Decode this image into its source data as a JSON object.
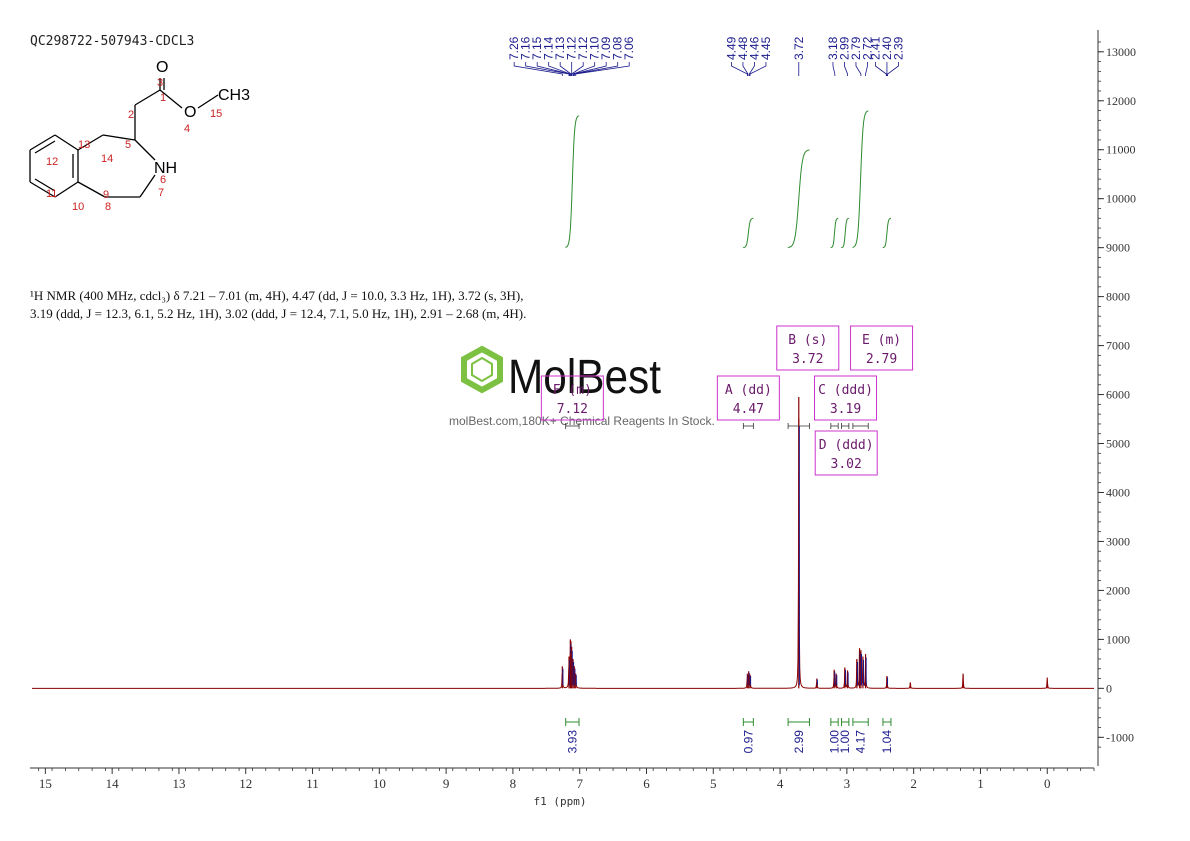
{
  "sample_id": "QC298722-507943-CDCL3",
  "nmr_text": {
    "line1": "¹H NMR (400 MHz, cdcl₃) δ 7.21 – 7.01 (m, 4H), 4.47 (dd, J = 10.0, 3.3 Hz, 1H), 3.72 (s, 3H),",
    "line2": "3.19 (ddd, J = 12.3, 6.1, 5.2 Hz, 1H), 3.02 (ddd, J = 12.4, 7.1, 5.0 Hz, 1H), 2.91 – 2.68 (m, 4H)."
  },
  "watermark": {
    "brand": "MolBest",
    "tagline": "molBest.com,180K+ Chemical Reagents In Stock."
  },
  "structure": {
    "atoms": [
      "O",
      "O",
      "CH3",
      "NH"
    ],
    "numbers": [
      "1",
      "2",
      "3",
      "4",
      "5",
      "6",
      "7",
      "8",
      "9",
      "10",
      "11",
      "12",
      "13",
      "14",
      "15"
    ]
  },
  "colors": {
    "spectrum": "#8b0000",
    "peak_labels": "#1a1a8c",
    "integral": "#2e8b2e",
    "multiplet_box": "#cc33cc",
    "axis": "#333333"
  },
  "chart_data": {
    "type": "line",
    "xlabel": "f1 (ppm)",
    "xlim": [
      15.2,
      -0.7
    ],
    "x_ticks": [
      "15",
      "14",
      "13",
      "12",
      "11",
      "10",
      "9",
      "8",
      "7",
      "6",
      "5",
      "4",
      "3",
      "2",
      "1",
      "0"
    ],
    "x_tick_values": [
      15,
      14,
      13,
      12,
      11,
      10,
      9,
      8,
      7,
      6,
      5,
      4,
      3,
      2,
      1,
      0
    ],
    "ylim": [
      -1300,
      13200
    ],
    "y_ticks": [
      "13000",
      "12000",
      "11000",
      "10000",
      "9000",
      "8000",
      "7000",
      "6000",
      "5000",
      "4000",
      "3000",
      "2000",
      "1000",
      "0",
      "-1000"
    ],
    "y_tick_values": [
      13000,
      12000,
      11000,
      10000,
      9000,
      8000,
      7000,
      6000,
      5000,
      4000,
      3000,
      2000,
      1000,
      0,
      -1000
    ],
    "peak_labels": [
      {
        "group": [
          7.26,
          7.16,
          7.15,
          7.14,
          7.13,
          7.12,
          7.12,
          7.1,
          7.09,
          7.08,
          7.06
        ],
        "labels": [
          "7.26",
          "7.16",
          "7.15",
          "7.14",
          "7.13",
          "7.12",
          "7.12",
          "7.10",
          "7.09",
          "7.08",
          "7.06"
        ],
        "target": 7.12
      },
      {
        "group": [
          4.49,
          4.48,
          4.46,
          4.45
        ],
        "labels": [
          "4.49",
          "4.48",
          "4.46",
          "4.45"
        ],
        "target": 4.47
      },
      {
        "group": [
          3.72
        ],
        "labels": [
          "3.72"
        ],
        "target": 3.72
      },
      {
        "group": [
          3.18,
          2.99,
          2.79,
          2.72
        ],
        "labels": [
          "3.18",
          "2.99",
          "2.79",
          "2.72"
        ],
        "target": 2.95
      },
      {
        "group": [
          2.41,
          2.4,
          2.39
        ],
        "labels": [
          "2.41",
          "2.40",
          "2.39"
        ],
        "target": 2.4
      }
    ],
    "peaks": [
      {
        "ppm": 7.26,
        "height": 450
      },
      {
        "ppm": 7.16,
        "height": 650
      },
      {
        "ppm": 7.14,
        "height": 1000
      },
      {
        "ppm": 7.13,
        "height": 700
      },
      {
        "ppm": 7.12,
        "height": 850
      },
      {
        "ppm": 7.1,
        "height": 600
      },
      {
        "ppm": 7.08,
        "height": 450
      },
      {
        "ppm": 7.06,
        "height": 300
      },
      {
        "ppm": 4.49,
        "height": 300
      },
      {
        "ppm": 4.47,
        "height": 350
      },
      {
        "ppm": 4.45,
        "height": 280
      },
      {
        "ppm": 3.72,
        "height": 5950
      },
      {
        "ppm": 3.45,
        "height": 200
      },
      {
        "ppm": 3.19,
        "height": 380
      },
      {
        "ppm": 3.16,
        "height": 300
      },
      {
        "ppm": 3.03,
        "height": 420
      },
      {
        "ppm": 2.99,
        "height": 360
      },
      {
        "ppm": 2.85,
        "height": 600
      },
      {
        "ppm": 2.81,
        "height": 820
      },
      {
        "ppm": 2.79,
        "height": 780
      },
      {
        "ppm": 2.76,
        "height": 650
      },
      {
        "ppm": 2.72,
        "height": 700
      },
      {
        "ppm": 2.4,
        "height": 250
      },
      {
        "ppm": 2.05,
        "height": 120
      },
      {
        "ppm": 1.26,
        "height": 300
      },
      {
        "ppm": 0.0,
        "height": 220
      }
    ],
    "integrals": [
      {
        "from": 7.21,
        "to": 7.01,
        "value": "3.93",
        "y_start": 9000,
        "y_end": 11700
      },
      {
        "from": 4.55,
        "to": 4.4,
        "value": "0.97",
        "y_start": 9000,
        "y_end": 9600
      },
      {
        "from": 3.88,
        "to": 3.56,
        "value": "2.99",
        "y_start": 9000,
        "y_end": 11000
      },
      {
        "from": 3.24,
        "to": 3.13,
        "value": "1.00",
        "y_start": 9000,
        "y_end": 9600
      },
      {
        "from": 3.08,
        "to": 2.97,
        "value": "1.00",
        "y_start": 9000,
        "y_end": 9600
      },
      {
        "from": 2.91,
        "to": 2.68,
        "value": "4.17",
        "y_start": 9000,
        "y_end": 11800
      },
      {
        "from": 2.46,
        "to": 2.34,
        "value": "1.04",
        "y_start": 9000,
        "y_end": 9600
      }
    ],
    "multiplets": [
      {
        "label": "F (m)",
        "value": "7.12",
        "from": 7.21,
        "to": 7.01,
        "side": "above"
      },
      {
        "label": "A (dd)",
        "value": "4.47",
        "from": 4.55,
        "to": 4.4,
        "side": "above"
      },
      {
        "label": "B (s)",
        "value": "3.72",
        "from": 3.88,
        "to": 3.56,
        "side": "above"
      },
      {
        "label": "C (ddd)",
        "value": "3.19",
        "from": 3.24,
        "to": 3.13,
        "side": "above"
      },
      {
        "label": "D (ddd)",
        "value": "3.02",
        "from": 3.08,
        "to": 2.97,
        "side": "below"
      },
      {
        "label": "E (m)",
        "value": "2.79",
        "from": 2.91,
        "to": 2.68,
        "side": "above"
      }
    ]
  }
}
